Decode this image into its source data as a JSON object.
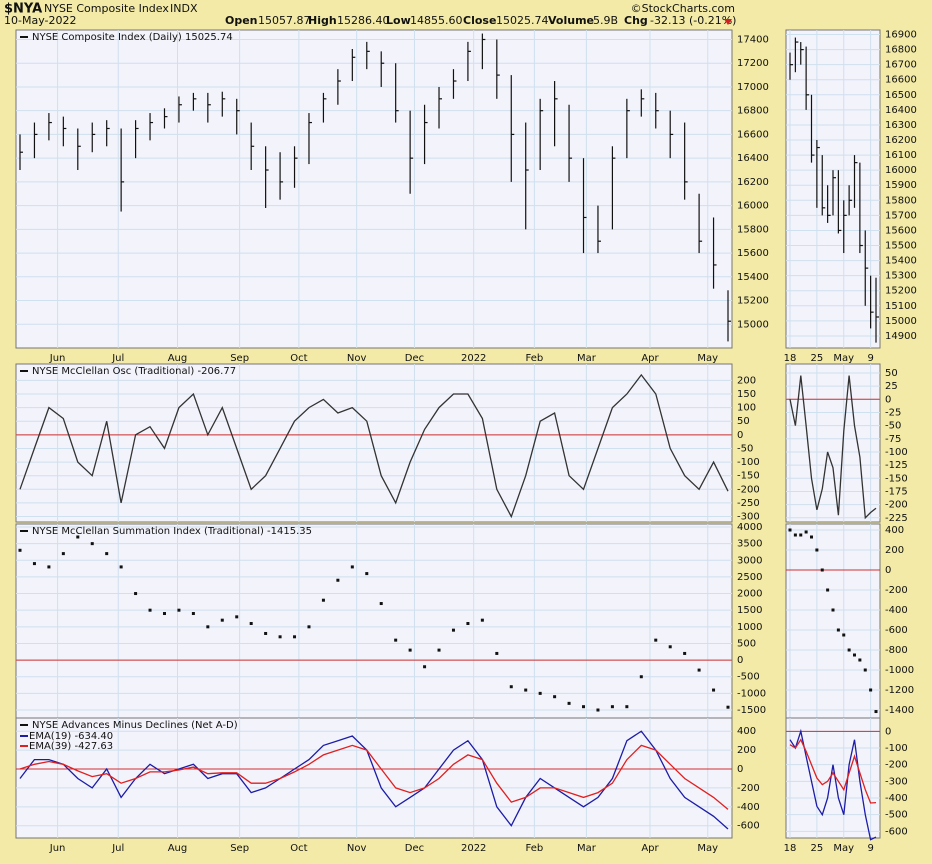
{
  "header": {
    "symbol": "$NYA",
    "name": "NYSE Composite Index",
    "exchange": "INDX",
    "date": "10-May-2022",
    "credit": "©StockCharts.com",
    "quote": [
      {
        "label": "Open",
        "value": "15057.87"
      },
      {
        "label": "High",
        "value": "15286.40"
      },
      {
        "label": "Low",
        "value": "14855.60"
      },
      {
        "label": "Close",
        "value": "15025.74"
      },
      {
        "label": "Volume",
        "value": "5.9B"
      },
      {
        "label": "Chg",
        "value": "-32.13 (-0.21%)"
      }
    ]
  },
  "chart_data": [
    {
      "type": "ohlc",
      "title": "NYSE Composite Index (Daily) 15025.74",
      "color": "#111111",
      "xlim": [
        0,
        49
      ],
      "xticks": [
        {
          "value": 2.6,
          "label": "Jun"
        },
        {
          "value": 6.8,
          "label": "Jul"
        },
        {
          "value": 10.9,
          "label": "Aug"
        },
        {
          "value": 15.2,
          "label": "Sep"
        },
        {
          "value": 19.3,
          "label": "Oct"
        },
        {
          "value": 23.3,
          "label": "Nov"
        },
        {
          "value": 27.3,
          "label": "Dec"
        },
        {
          "value": 31.4,
          "label": "2022"
        },
        {
          "value": 35.6,
          "label": "Feb"
        },
        {
          "value": 39.2,
          "label": "Mar"
        },
        {
          "value": 43.6,
          "label": "Apr"
        },
        {
          "value": 47.6,
          "label": "May"
        }
      ],
      "ylim": [
        14800,
        17480
      ],
      "yticks": [
        15000,
        15200,
        15400,
        15600,
        15800,
        16000,
        16200,
        16400,
        16600,
        16800,
        17000,
        17200,
        17400
      ],
      "close": [
        16450,
        16600,
        16700,
        16650,
        16500,
        16600,
        16650,
        16200,
        16650,
        16700,
        16750,
        16850,
        16900,
        16850,
        16900,
        16800,
        16500,
        16300,
        16200,
        16400,
        16700,
        16900,
        17050,
        17250,
        17300,
        17200,
        16800,
        16400,
        16700,
        16900,
        17050,
        17300,
        17400,
        17100,
        16600,
        16300,
        16800,
        16900,
        16400,
        15900,
        15700,
        16400,
        16800,
        16900,
        16800,
        16600,
        16200,
        15700,
        15500,
        15025.74
      ],
      "high": [
        16600,
        16700,
        16780,
        16750,
        16650,
        16700,
        16720,
        16650,
        16720,
        16780,
        16820,
        16920,
        16950,
        16950,
        16960,
        16900,
        16700,
        16500,
        16450,
        16500,
        16780,
        16950,
        17150,
        17320,
        17380,
        17300,
        17200,
        16800,
        16850,
        17000,
        17150,
        17380,
        17450,
        17400,
        17100,
        16700,
        16900,
        17050,
        16850,
        16400,
        16000,
        16500,
        16900,
        16980,
        16950,
        16800,
        16700,
        16100,
        15900,
        15286.4
      ],
      "low": [
        16300,
        16400,
        16550,
        16500,
        16300,
        16450,
        16500,
        15950,
        16400,
        16550,
        16650,
        16700,
        16800,
        16700,
        16750,
        16600,
        16300,
        15980,
        16050,
        16150,
        16350,
        16700,
        16850,
        17050,
        17150,
        17000,
        16700,
        16100,
        16350,
        16650,
        16900,
        17050,
        17150,
        16900,
        16200,
        15800,
        16300,
        16500,
        16200,
        15600,
        15600,
        15800,
        16400,
        16750,
        16650,
        16400,
        16050,
        15600,
        15300,
        14855.6
      ]
    },
    {
      "type": "line",
      "title": "NYSE McClellan Osc (Traditional) -206.77",
      "xlim": [
        0,
        49
      ],
      "ylim": [
        -320,
        260
      ],
      "yticks": [
        -300,
        -250,
        -200,
        -150,
        -100,
        -50,
        0,
        50,
        100,
        150,
        200
      ],
      "hline": 0,
      "hline_color": "#d03030",
      "series": [
        {
          "color": "#333333",
          "values": [
            -200,
            -50,
            100,
            60,
            -100,
            -150,
            50,
            -250,
            0,
            30,
            -50,
            100,
            150,
            0,
            100,
            -50,
            -200,
            -150,
            -50,
            50,
            100,
            130,
            80,
            100,
            50,
            -150,
            -250,
            -100,
            20,
            100,
            150,
            150,
            60,
            -200,
            -300,
            -150,
            50,
            80,
            -150,
            -200,
            -50,
            100,
            150,
            220,
            150,
            -50,
            -150,
            -200,
            -100,
            -206.77
          ]
        }
      ]
    },
    {
      "type": "dots",
      "title": "NYSE McClellan Summation Index (Traditional) -1415.35",
      "color": "#111111",
      "xlim": [
        0,
        49
      ],
      "ylim": [
        -1740,
        4090
      ],
      "yticks": [
        -1500,
        -1000,
        -500,
        0,
        500,
        1000,
        1500,
        2000,
        2500,
        3000,
        3500,
        4000
      ],
      "hline": 0,
      "hline_color": "#d03030",
      "values": [
        3300,
        2900,
        2800,
        3200,
        3700,
        3500,
        3200,
        2800,
        2000,
        1500,
        1400,
        1500,
        1400,
        1000,
        1200,
        1300,
        1100,
        800,
        700,
        700,
        1000,
        1800,
        2400,
        2800,
        2600,
        1700,
        600,
        300,
        -200,
        300,
        900,
        1100,
        1200,
        200,
        -800,
        -900,
        -1000,
        -1100,
        -1300,
        -1400,
        -1500,
        -1400,
        -1400,
        -500,
        600,
        400,
        200,
        -300,
        -900,
        -1415.35
      ]
    },
    {
      "type": "line",
      "title": "NYSE Advances Minus Declines (Net A-D)",
      "legend": "upper left",
      "xlim": [
        0,
        49
      ],
      "xticks": [
        {
          "value": 2.6,
          "label": "Jun"
        },
        {
          "value": 6.8,
          "label": "Jul"
        },
        {
          "value": 10.9,
          "label": "Aug"
        },
        {
          "value": 15.2,
          "label": "Sep"
        },
        {
          "value": 19.3,
          "label": "Oct"
        },
        {
          "value": 23.3,
          "label": "Nov"
        },
        {
          "value": 27.3,
          "label": "Dec"
        },
        {
          "value": 31.4,
          "label": "2022"
        },
        {
          "value": 35.6,
          "label": "Feb"
        },
        {
          "value": 39.2,
          "label": "Mar"
        },
        {
          "value": 43.6,
          "label": "Apr"
        },
        {
          "value": 47.6,
          "label": "May"
        }
      ],
      "ylim": [
        -730,
        540
      ],
      "yticks": [
        -600,
        -400,
        -200,
        0,
        200,
        400
      ],
      "hline": 0,
      "hline_color": "#d03030",
      "series": [
        {
          "name": "EMA(19) -634.40",
          "color": "#1c1ca8",
          "values": [
            -100,
            100,
            100,
            50,
            -100,
            -200,
            0,
            -300,
            -100,
            50,
            -50,
            0,
            50,
            -100,
            -50,
            -50,
            -250,
            -200,
            -100,
            0,
            100,
            250,
            300,
            350,
            200,
            -200,
            -400,
            -300,
            -200,
            0,
            200,
            300,
            100,
            -400,
            -600,
            -300,
            -100,
            -200,
            -300,
            -400,
            -300,
            -100,
            300,
            400,
            200,
            -100,
            -300,
            -400,
            -500,
            -634.4
          ]
        },
        {
          "name": "EMA(39) -427.63",
          "color": "#e02020",
          "values": [
            0,
            50,
            80,
            50,
            -20,
            -80,
            -50,
            -150,
            -100,
            -30,
            -30,
            -10,
            20,
            -50,
            -40,
            -40,
            -150,
            -150,
            -100,
            -30,
            50,
            150,
            200,
            250,
            200,
            0,
            -200,
            -250,
            -200,
            -100,
            50,
            150,
            100,
            -150,
            -350,
            -300,
            -200,
            -200,
            -250,
            -300,
            -250,
            -150,
            100,
            250,
            200,
            50,
            -100,
            -200,
            -300,
            -427.63
          ]
        }
      ]
    },
    {
      "type": "ohlc",
      "color": "#111111",
      "xlim": [
        0,
        16
      ],
      "xticks": [
        {
          "value": 0,
          "label": "18"
        },
        {
          "value": 5,
          "label": "25"
        },
        {
          "value": 10,
          "label": "May"
        },
        {
          "value": 15,
          "label": "9"
        }
      ],
      "ylim": [
        14820,
        16930
      ],
      "yticks": [
        14900,
        15000,
        15100,
        15200,
        15300,
        15400,
        15500,
        15600,
        15700,
        15800,
        15900,
        16000,
        16100,
        16200,
        16300,
        16400,
        16500,
        16600,
        16700,
        16800,
        16900
      ],
      "close": [
        16700,
        16850,
        16800,
        16500,
        16100,
        16150,
        15750,
        15700,
        15950,
        15600,
        15700,
        15800,
        16050,
        15500,
        15350,
        15057.87,
        15025.74
      ],
      "high": [
        16780,
        16880,
        16850,
        16820,
        16500,
        16200,
        16100,
        15900,
        16000,
        16000,
        15800,
        15900,
        16100,
        16050,
        15600,
        15300,
        15286.4
      ],
      "low": [
        16600,
        16650,
        16700,
        16400,
        16050,
        15750,
        15700,
        15650,
        15700,
        15580,
        15450,
        15700,
        15750,
        15450,
        15100,
        14950,
        14855.6
      ]
    },
    {
      "type": "line",
      "xlim": [
        0,
        16
      ],
      "ylim": [
        -233,
        67
      ],
      "yticks": [
        -225,
        -200,
        -175,
        -150,
        -125,
        -100,
        -75,
        -50,
        -25,
        0,
        25,
        50
      ],
      "hline": 0,
      "hline_color": "#d03030",
      "series": [
        {
          "color": "#333333",
          "values": [
            0,
            -50,
            45,
            -50,
            -150,
            -210,
            -170,
            -100,
            -130,
            -220,
            -60,
            45,
            -50,
            -110,
            -225,
            -215,
            -206.77
          ]
        }
      ]
    },
    {
      "type": "dots",
      "color": "#111111",
      "xlim": [
        0,
        16
      ],
      "ylim": [
        -1480,
        460
      ],
      "yticks": [
        -1400,
        -1200,
        -1000,
        -800,
        -600,
        -400,
        -200,
        0,
        200,
        400
      ],
      "hline": 0,
      "hline_color": "#d03030",
      "values": [
        400,
        350,
        350,
        380,
        330,
        200,
        0,
        -200,
        -400,
        -600,
        -650,
        -800,
        -850,
        -900,
        -1000,
        -1200,
        -1415.35
      ]
    },
    {
      "type": "line",
      "xlim": [
        0,
        16
      ],
      "xticks": [
        {
          "value": 0,
          "label": "18"
        },
        {
          "value": 5,
          "label": "25"
        },
        {
          "value": 10,
          "label": "May"
        },
        {
          "value": 15,
          "label": "9"
        }
      ],
      "ylim": [
        -640,
        80
      ],
      "yticks": [
        -600,
        -500,
        -400,
        -300,
        -200,
        -100,
        0
      ],
      "hline": 0,
      "hline_color": "#d03030",
      "series": [
        {
          "color": "#1c1ca8",
          "values": [
            -50,
            -100,
            0,
            -150,
            -300,
            -450,
            -500,
            -400,
            -200,
            -400,
            -500,
            -200,
            -50,
            -300,
            -500,
            -650,
            -634.4
          ]
        },
        {
          "color": "#e02020",
          "values": [
            -80,
            -100,
            -50,
            -120,
            -200,
            -280,
            -320,
            -300,
            -250,
            -300,
            -350,
            -250,
            -150,
            -250,
            -350,
            -430,
            -427.63
          ]
        }
      ]
    }
  ]
}
